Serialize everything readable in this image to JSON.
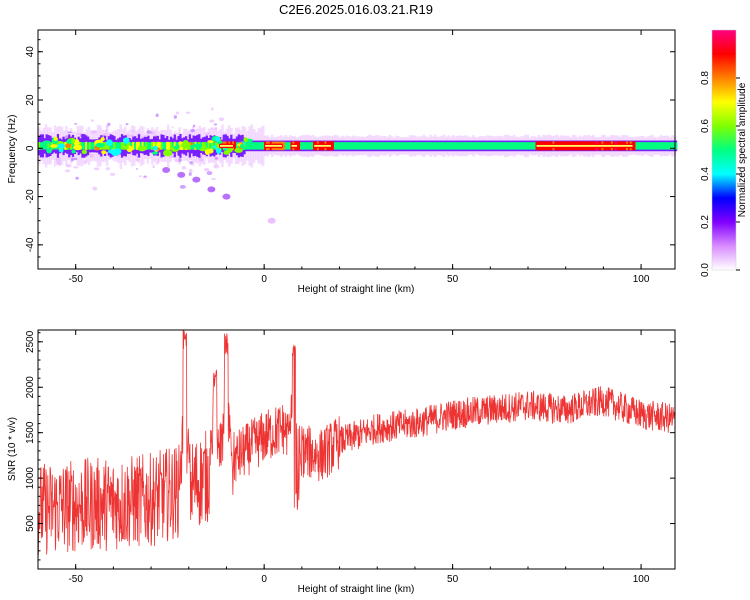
{
  "title": "C2E6.2025.016.03.21.R19",
  "chart_data": [
    {
      "type": "heatmap",
      "title": "C2E6.2025.016.03.21.R19",
      "xlabel": "Height of straight line (km)",
      "ylabel": "Frequency (Hz)",
      "xlim": [
        -60,
        109
      ],
      "ylim": [
        -50,
        49
      ],
      "x_ticks": [
        -50,
        0,
        50,
        100
      ],
      "y_ticks": [
        -40,
        -20,
        0,
        20,
        40
      ],
      "colorbar": {
        "label": "Normalized spectral amplitude",
        "range": [
          0.0,
          1.0
        ],
        "ticks": [
          0.0,
          0.2,
          0.4,
          0.6,
          0.8
        ],
        "tick_labels": [
          "0.0",
          "0.2",
          "0.4",
          "0.6",
          "0.8"
        ],
        "colors": [
          "#ffffff",
          "#d98cff",
          "#8000ff",
          "#0000ff",
          "#00ffff",
          "#00ff80",
          "#80ff00",
          "#ffff00",
          "#ff8000",
          "#ff0000",
          "#ff0080"
        ]
      },
      "band": {
        "center_hz": 1,
        "half_width_hz": 3,
        "x_start": -60,
        "x_end": 109,
        "peak_segments": [
          {
            "x0": -12,
            "x1": -8,
            "level": 0.85
          },
          {
            "x0": 0,
            "x1": 5,
            "level": 0.8
          },
          {
            "x0": 7,
            "x1": 9,
            "level": 0.85
          },
          {
            "x0": 13,
            "x1": 18,
            "level": 0.9
          },
          {
            "x0": 72,
            "x1": 98,
            "level": 0.9
          }
        ],
        "tail_points": [
          [
            -26,
            -9
          ],
          [
            -22,
            -11
          ],
          [
            -18,
            -13
          ],
          [
            -14,
            -17
          ],
          [
            -10,
            -20
          ],
          [
            2,
            -30
          ]
        ]
      }
    },
    {
      "type": "line",
      "xlabel": "Height of straight line (km)",
      "ylabel": "SNR (10 * v/v)",
      "xlim": [
        -60,
        109
      ],
      "ylim": [
        0,
        2630
      ],
      "x_ticks": [
        -50,
        0,
        50,
        100
      ],
      "y_ticks": [
        500,
        1000,
        1500,
        2000,
        2500
      ],
      "color": "#ee3333",
      "trend": [
        [
          -60,
          650
        ],
        [
          -50,
          700
        ],
        [
          -40,
          720
        ],
        [
          -30,
          760
        ],
        [
          -20,
          900
        ],
        [
          -10,
          1150
        ],
        [
          -5,
          1300
        ],
        [
          0,
          1450
        ],
        [
          5,
          1550
        ],
        [
          10,
          1300
        ],
        [
          15,
          1250
        ],
        [
          20,
          1400
        ],
        [
          30,
          1550
        ],
        [
          40,
          1600
        ],
        [
          50,
          1700
        ],
        [
          60,
          1750
        ],
        [
          70,
          1800
        ],
        [
          80,
          1750
        ],
        [
          90,
          1850
        ],
        [
          100,
          1700
        ],
        [
          109,
          1650
        ]
      ],
      "spikes": [
        {
          "x": -21,
          "y": 2630
        },
        {
          "x": -10,
          "y": 2600
        },
        {
          "x": 8,
          "y": 2490
        },
        {
          "x": -13,
          "y": 2200
        }
      ]
    }
  ]
}
